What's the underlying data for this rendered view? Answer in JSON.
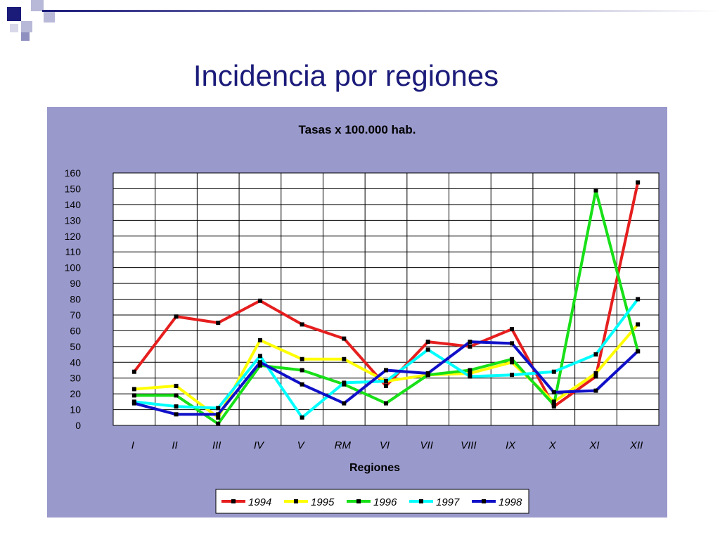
{
  "page": {
    "title": "Incidencia por regiones",
    "accent": "#1b1b7a",
    "chart_bg": "#9999cc"
  },
  "chart_data": {
    "type": "line",
    "title": "Tasas x 100.000 hab.",
    "xlabel": "Regiones",
    "ylabel": "",
    "categories": [
      "I",
      "II",
      "III",
      "IV",
      "V",
      "RM",
      "VI",
      "VII",
      "VIII",
      "IX",
      "X",
      "XI",
      "XII"
    ],
    "ylim": [
      0,
      160
    ],
    "yticks": [
      "0",
      "10",
      "20",
      "30",
      "40",
      "50",
      "60",
      "70",
      "80",
      "90",
      "100",
      "110",
      "120",
      "130",
      "140",
      "150",
      "160"
    ],
    "grid": true,
    "legend": "bottom",
    "series": [
      {
        "name": "1994",
        "color": "#e61e1e",
        "values": [
          34,
          69,
          65,
          79,
          64,
          55,
          25,
          53,
          50,
          61,
          12,
          31,
          154
        ]
      },
      {
        "name": "1995",
        "color": "#ffff00",
        "values": [
          23,
          25,
          5,
          54,
          42,
          42,
          28,
          32,
          33,
          40,
          15,
          33,
          64
        ]
      },
      {
        "name": "1996",
        "color": "#18e018",
        "values": [
          19,
          19,
          1,
          38,
          35,
          26,
          14,
          32,
          35,
          42,
          13,
          149,
          47
        ]
      },
      {
        "name": "1997",
        "color": "#00ffff",
        "values": [
          15,
          12,
          11,
          44,
          5,
          27,
          28,
          48,
          31,
          32,
          34,
          45,
          80
        ]
      },
      {
        "name": "1998",
        "color": "#1010c8",
        "values": [
          14,
          7,
          7,
          40,
          26,
          14,
          35,
          33,
          53,
          52,
          21,
          22,
          47
        ]
      }
    ]
  }
}
